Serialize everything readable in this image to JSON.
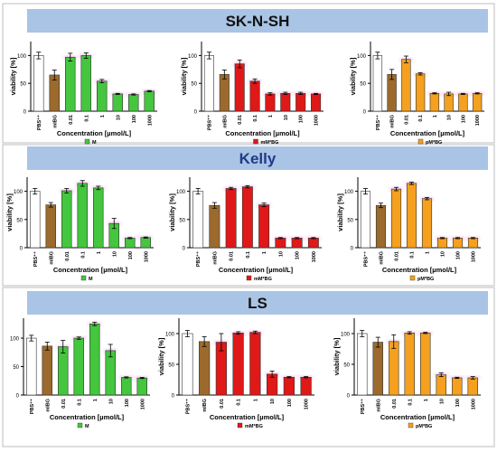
{
  "figure": {
    "colors": {
      "header_bg": "#a9c4e4",
      "header_text_black": "#111111",
      "header_text_blue": "#1f3a8a",
      "frame": "#bdbdbd",
      "pbs": "#ffffff",
      "mibg": "#9c6a2c",
      "m": "#44c63e",
      "mm": "#e01818",
      "pm": "#f5a01e",
      "errorbar": "#000000",
      "glow": "#f2a6e6"
    },
    "panels": [
      {
        "header": "SK-N-SH",
        "header_color": "#111111",
        "charts": [
          {
            "ylabel": "viability [%]",
            "xlabel": "Concentration [µmol/L]",
            "legend": "M",
            "legend_color": "#44c63e"
          },
          {
            "ylabel": "viability [%]",
            "xlabel": "Concentration [µmol/L]",
            "legend": "mM*BG",
            "legend_color": "#e01818"
          },
          {
            "ylabel": "viability [%]",
            "xlabel": "Concentration [µmol/L]",
            "legend": "pM*BG",
            "legend_color": "#f5a01e"
          }
        ]
      },
      {
        "header": "Kelly",
        "header_color": "#1f3a8a",
        "charts": [
          {
            "ylabel": "viability [%]",
            "xlabel": "Concentration [µmol/L]",
            "legend": "M",
            "legend_color": "#44c63e"
          },
          {
            "ylabel": "viability [%]",
            "xlabel": "Concentration [µmol/L]",
            "legend": "mM*BG",
            "legend_color": "#e01818"
          },
          {
            "ylabel": "viability [%]",
            "xlabel": "Concentration [µmol/L]",
            "legend": "pM*BG",
            "legend_color": "#f5a01e"
          }
        ]
      },
      {
        "header": "LS",
        "header_color": "#111111",
        "charts": [
          {
            "ylabel": "",
            "xlabel": "Concentration [µmol/L]",
            "legend": "M",
            "legend_color": "#44c63e"
          },
          {
            "ylabel": "viability [%]",
            "xlabel": "Concentration [µmol/L]",
            "legend": "mM*BG",
            "legend_color": "#e01818"
          },
          {
            "ylabel": "viability [%]",
            "xlabel": "Concentration [µmol/L]",
            "legend": "pM*BG",
            "legend_color": "#f5a01e"
          }
        ]
      }
    ]
  },
  "chart_data": [
    {
      "type": "bar",
      "panel": "SK-N-SH",
      "legend": "M",
      "categories": [
        "PBS⁺⁺",
        "mIBG",
        "0.01",
        "0.1",
        "1",
        "10",
        "100",
        "1000"
      ],
      "values": [
        100,
        65,
        97,
        100,
        54,
        31,
        30,
        36
      ],
      "errors": [
        6,
        9,
        7,
        5,
        3,
        1,
        1,
        1
      ],
      "yticks": [
        0,
        50,
        100
      ],
      "ylim": [
        0,
        125
      ]
    },
    {
      "type": "bar",
      "panel": "SK-N-SH",
      "legend": "mM*BG",
      "categories": [
        "PBS⁺⁺",
        "mIBG",
        "0.01",
        "0.1",
        "1",
        "10",
        "100",
        "1000"
      ],
      "values": [
        100,
        66,
        85,
        54,
        31,
        32,
        32,
        31
      ],
      "errors": [
        6,
        8,
        7,
        4,
        2,
        2,
        2,
        1
      ],
      "yticks": [
        0,
        50,
        100
      ],
      "ylim": [
        0,
        125
      ]
    },
    {
      "type": "bar",
      "panel": "SK-N-SH",
      "legend": "pM*BG",
      "categories": [
        "PBS⁺⁺",
        "mIBG",
        "0.01",
        "0.1",
        "1",
        "10",
        "100",
        "1000"
      ],
      "values": [
        100,
        66,
        93,
        67,
        32,
        31,
        31,
        32
      ],
      "errors": [
        6,
        9,
        6,
        2,
        1,
        3,
        1,
        1
      ],
      "yticks": [
        0,
        50,
        100
      ],
      "ylim": [
        0,
        125
      ]
    },
    {
      "type": "bar",
      "panel": "Kelly",
      "legend": "M",
      "categories": [
        "PBS⁺⁺",
        "mIBG",
        "0.01",
        "0.1",
        "1",
        "10",
        "100",
        "1000"
      ],
      "values": [
        100,
        76,
        101,
        114,
        106,
        43,
        17,
        18
      ],
      "errors": [
        5,
        4,
        4,
        5,
        3,
        9,
        1,
        1
      ],
      "yticks": [
        0,
        50,
        100
      ],
      "ylim": [
        0,
        125
      ]
    },
    {
      "type": "bar",
      "panel": "Kelly",
      "legend": "mM*BG",
      "categories": [
        "PBS⁺⁺",
        "mIBG",
        "0.01",
        "0.1",
        "1",
        "10",
        "100",
        "1000"
      ],
      "values": [
        100,
        75,
        105,
        108,
        76,
        17,
        17,
        17
      ],
      "errors": [
        5,
        5,
        2,
        2,
        3,
        1,
        1,
        1
      ],
      "yticks": [
        0,
        50,
        100
      ],
      "ylim": [
        0,
        125
      ]
    },
    {
      "type": "bar",
      "panel": "Kelly",
      "legend": "pM*BG",
      "categories": [
        "PBS⁺⁺",
        "mIBG",
        "0.01",
        "0.1",
        "1",
        "10",
        "100",
        "1000"
      ],
      "values": [
        100,
        75,
        104,
        114,
        87,
        17,
        17,
        17
      ],
      "errors": [
        5,
        4,
        3,
        2,
        2,
        1,
        1,
        1
      ],
      "yticks": [
        0,
        50,
        100
      ],
      "ylim": [
        0,
        125
      ]
    },
    {
      "type": "bar",
      "panel": "LS",
      "legend": "M",
      "categories": [
        "PBS⁺⁺",
        "mIBG",
        "0.01",
        "0.1",
        "1",
        "10",
        "100",
        "1000"
      ],
      "values": [
        100,
        86,
        85,
        100,
        125,
        78,
        31,
        30
      ],
      "errors": [
        5,
        7,
        11,
        2,
        3,
        11,
        1,
        1
      ],
      "yticks": [
        0,
        50,
        100
      ],
      "ylim": [
        0,
        135
      ]
    },
    {
      "type": "bar",
      "panel": "LS",
      "legend": "mM*BG",
      "categories": [
        "PBS⁺⁺",
        "mIBG",
        "0.01",
        "0.1",
        "1",
        "10",
        "100",
        "1000"
      ],
      "values": [
        100,
        87,
        86,
        101,
        102,
        34,
        29,
        29
      ],
      "errors": [
        5,
        8,
        14,
        2,
        2,
        5,
        1,
        1
      ],
      "yticks": [
        0,
        50,
        100
      ],
      "ylim": [
        0,
        125
      ]
    },
    {
      "type": "bar",
      "panel": "LS",
      "legend": "pM*BG",
      "categories": [
        "PBS⁺⁺",
        "mIBG",
        "0.01",
        "0.1",
        "1",
        "10",
        "100",
        "1000"
      ],
      "values": [
        100,
        86,
        87,
        101,
        101,
        33,
        28,
        28
      ],
      "errors": [
        5,
        8,
        11,
        2,
        1,
        3,
        1,
        2
      ],
      "yticks": [
        0,
        50,
        100
      ],
      "ylim": [
        0,
        125
      ]
    }
  ]
}
